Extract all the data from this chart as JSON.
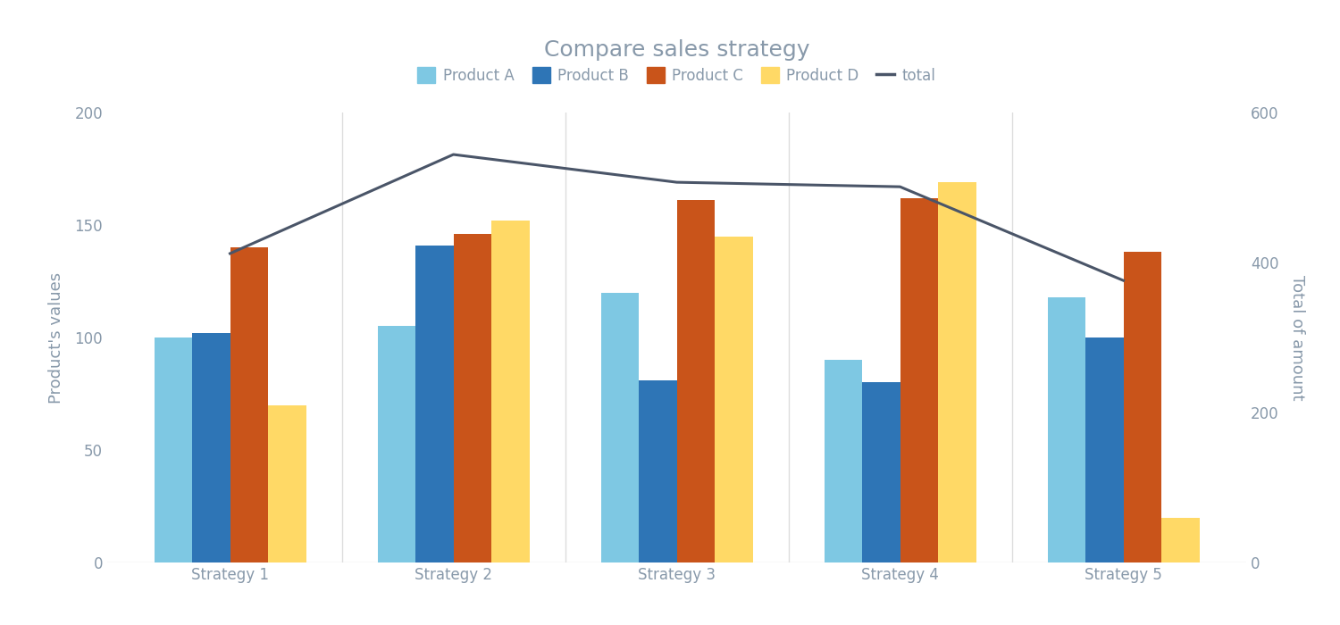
{
  "title": "Compare sales strategy",
  "categories": [
    "Strategy 1",
    "Strategy 2",
    "Strategy 3",
    "Strategy 4",
    "Strategy 5"
  ],
  "product_a": [
    100,
    105,
    120,
    90,
    118
  ],
  "product_b": [
    102,
    141,
    81,
    80,
    100
  ],
  "product_c": [
    140,
    146,
    161,
    162,
    138
  ],
  "product_d": [
    70,
    152,
    145,
    169,
    20
  ],
  "total": [
    412,
    544,
    507,
    501,
    376
  ],
  "bar_colors": {
    "product_a": "#7EC8E3",
    "product_b": "#2E75B6",
    "product_c": "#C9541A",
    "product_d": "#FFD966",
    "total_line": "#4A5568"
  },
  "ylabel_left": "Product's values",
  "ylabel_right": "Total of amount",
  "ylim_left": [
    0,
    200
  ],
  "ylim_right": [
    0,
    600
  ],
  "background_color": "#FFFFFF",
  "plot_bg_color": "#FFFFFF",
  "title_fontsize": 18,
  "legend_fontsize": 12,
  "axis_label_fontsize": 13,
  "tick_fontsize": 12,
  "bar_width": 0.17,
  "grid_color": "#DDDDDD",
  "text_color": "#8899AA"
}
